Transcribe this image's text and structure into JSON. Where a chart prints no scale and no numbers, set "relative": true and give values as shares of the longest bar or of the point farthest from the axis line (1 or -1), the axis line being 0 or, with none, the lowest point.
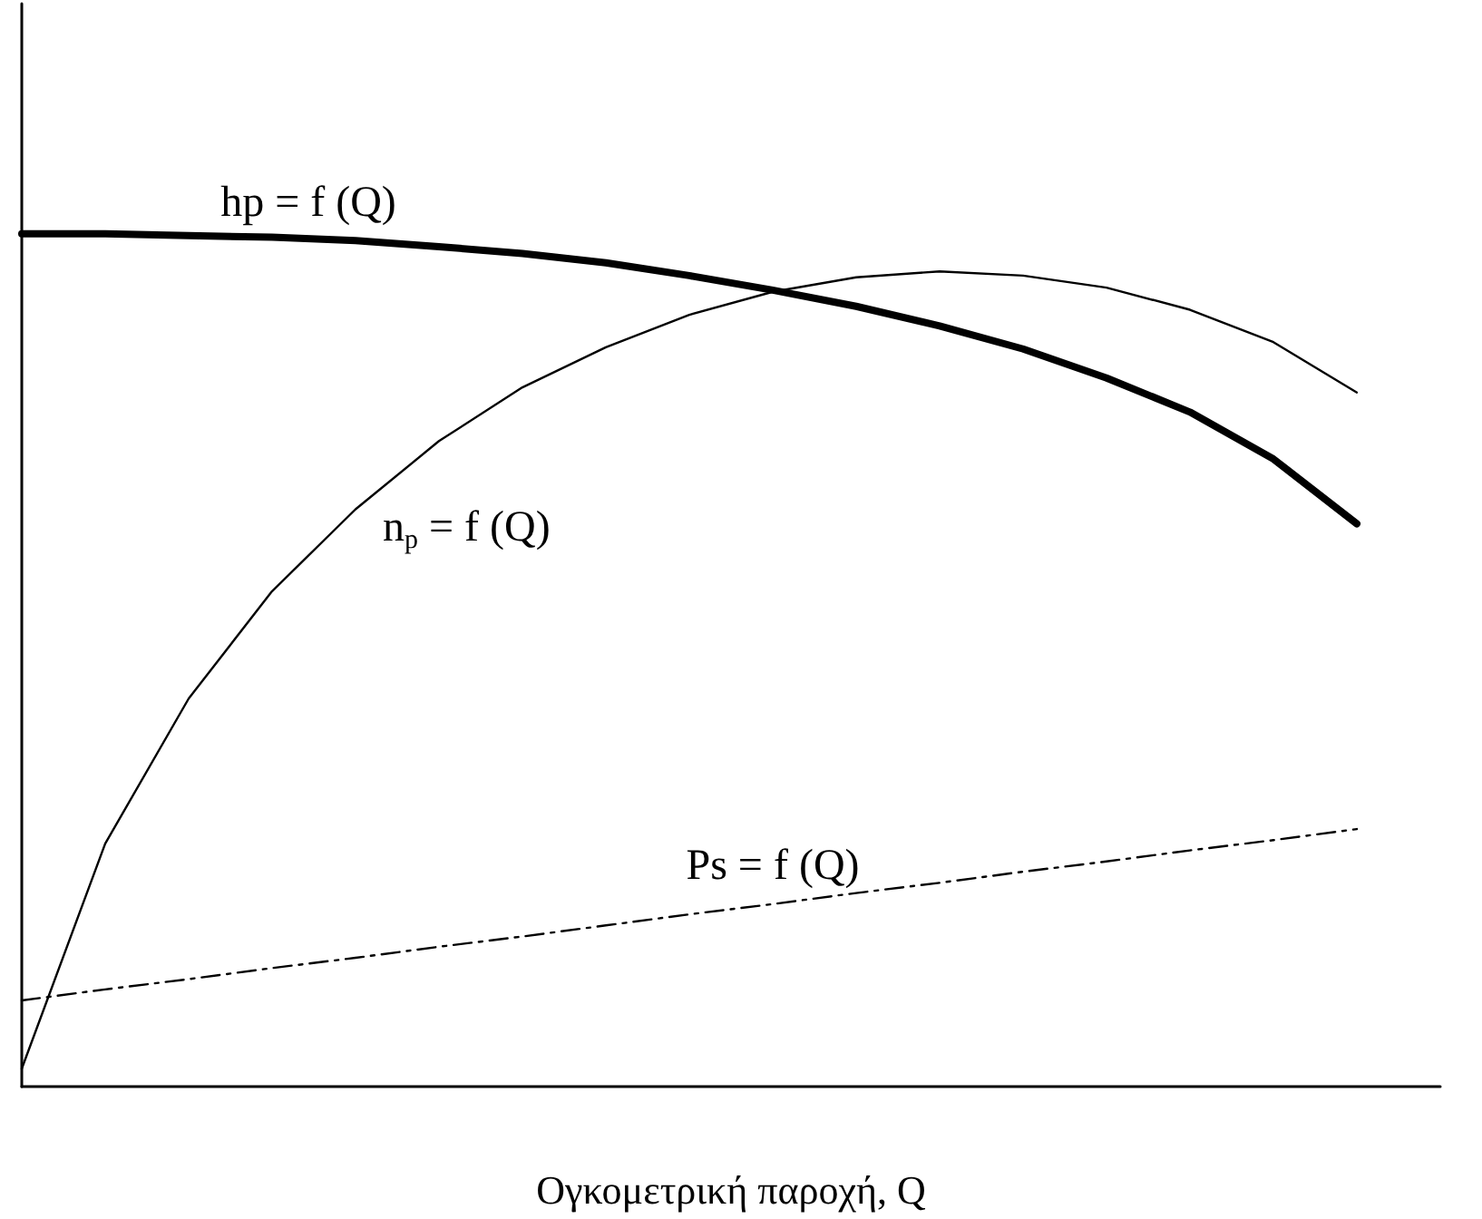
{
  "chart_data": {
    "type": "line",
    "relative": true,
    "xlabel": "Ογκομετρική παροχή, Q",
    "categories": [
      null,
      null,
      null,
      null,
      null,
      null,
      null,
      null,
      null,
      null,
      null,
      null,
      null,
      null,
      null,
      null,
      null,
      null
    ],
    "grid": false,
    "legend": false,
    "marker": "none",
    "series": [
      {
        "name": "hp = f (Q)",
        "color": "#000000",
        "line_style": "solid",
        "values": [
          1.0,
          1.0,
          0.998,
          0.996,
          0.992,
          0.985,
          0.977,
          0.966,
          0.951,
          0.934,
          0.915,
          0.892,
          0.865,
          0.831,
          0.791,
          0.736,
          0.66,
          null
        ]
      },
      {
        "name": "n$_{p}$ = f (Q)",
        "color": "#000000",
        "line_style": "solid",
        "values": [
          0.021,
          0.285,
          0.455,
          0.581,
          0.677,
          0.757,
          0.82,
          0.867,
          0.905,
          0.932,
          0.949,
          0.956,
          0.951,
          0.937,
          0.911,
          0.873,
          0.814,
          null
        ]
      },
      {
        "name": "Ps = f (Q)",
        "color": "#000000",
        "line_style": "dashed",
        "values": [
          0.101,
          0.114,
          0.126,
          0.139,
          0.151,
          0.164,
          0.176,
          0.189,
          0.202,
          0.214,
          0.227,
          0.239,
          0.252,
          0.264,
          0.277,
          0.289,
          0.302,
          null
        ]
      }
    ]
  }
}
